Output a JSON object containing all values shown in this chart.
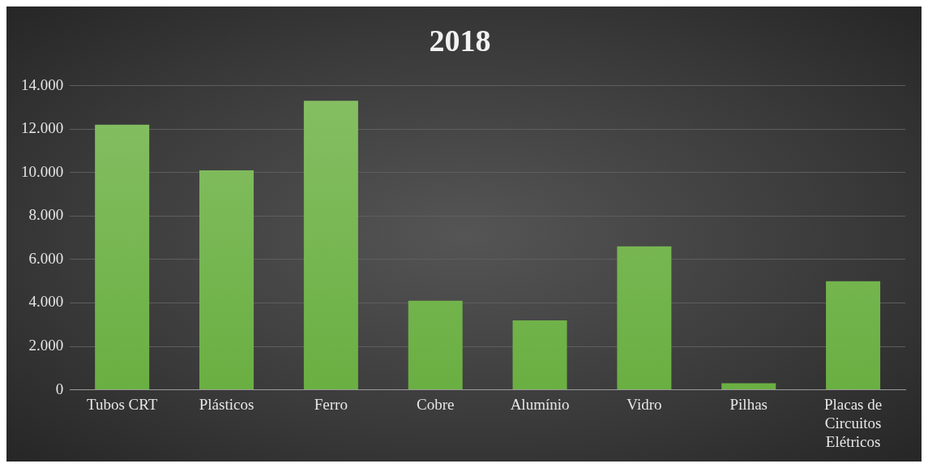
{
  "chart_data": {
    "type": "bar",
    "title": "2018",
    "categories": [
      "Tubos CRT",
      "Plásticos",
      "Ferro",
      "Cobre",
      "Alumínio",
      "Vidro",
      "Pilhas",
      "Placas de Circuitos Elétricos"
    ],
    "values": [
      12200,
      10100,
      13300,
      4100,
      3200,
      6600,
      300,
      5000
    ],
    "color": "#6aaf42",
    "ylim": [
      0,
      14000
    ],
    "yticks": [
      {
        "value": 0,
        "label": "0"
      },
      {
        "value": 2000,
        "label": "2.000"
      },
      {
        "value": 4000,
        "label": "4.000"
      },
      {
        "value": 6000,
        "label": "6.000"
      },
      {
        "value": 8000,
        "label": "8.000"
      },
      {
        "value": 10000,
        "label": "10.000"
      },
      {
        "value": 12000,
        "label": "12.000"
      },
      {
        "value": 14000,
        "label": "14.000"
      }
    ],
    "grid": "y",
    "legend": false
  }
}
